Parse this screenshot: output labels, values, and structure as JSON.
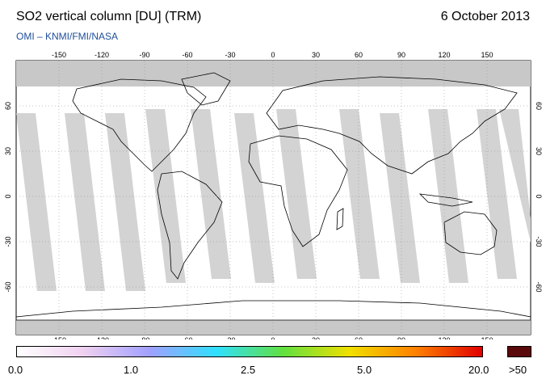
{
  "header": {
    "title": "SO2 vertical column [DU] (TRM)",
    "date": "6 October 2013",
    "credit": "OMI  –  KNMI/FMI/NASA"
  },
  "map": {
    "lon_ticks": [
      "-150",
      "-120",
      "-90",
      "-60",
      "-30",
      "0",
      "30",
      "60",
      "90",
      "120",
      "150"
    ],
    "lat_ticks": [
      "60",
      "30",
      "0",
      "-30",
      "-60"
    ],
    "ocean_color": "#ffffff",
    "land_outline_color": "#000000",
    "nodata_color": "#c8c8c8",
    "swath_color": "#d3d3d3"
  },
  "colorbar": {
    "labels": [
      "0.0",
      "1.0",
      "2.5",
      "5.0",
      "20.0",
      ">50"
    ],
    "stops": [
      "#ffffff",
      "#f0d0f0",
      "#a0a0ff",
      "#30e0ff",
      "#60e040",
      "#f0e000",
      "#ff8000",
      "#e00000"
    ],
    "overflow_color": "#5a0a0a"
  }
}
